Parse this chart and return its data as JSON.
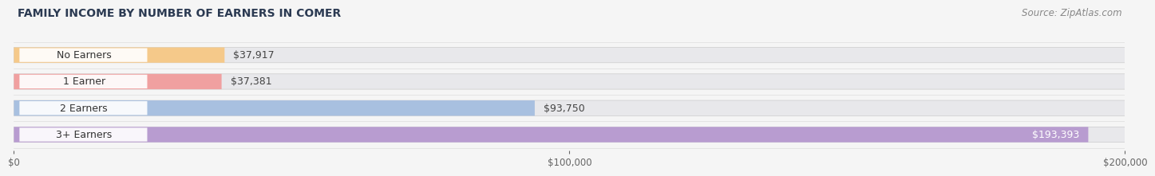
{
  "title": "FAMILY INCOME BY NUMBER OF EARNERS IN COMER",
  "source": "Source: ZipAtlas.com",
  "categories": [
    "No Earners",
    "1 Earner",
    "2 Earners",
    "3+ Earners"
  ],
  "values": [
    37917,
    37381,
    93750,
    193393
  ],
  "bar_colors": [
    "#f5c98a",
    "#f0a0a0",
    "#a8c0e0",
    "#b89cd0"
  ],
  "circle_colors": [
    "#e8a850",
    "#d07878",
    "#6090c8",
    "#7850a0"
  ],
  "label_colors": [
    "#333333",
    "#333333",
    "#333333",
    "#333333"
  ],
  "value_labels": [
    "$37,917",
    "$37,381",
    "$93,750",
    "$193,393"
  ],
  "xlim": [
    0,
    200000
  ],
  "xticks": [
    0,
    100000,
    200000
  ],
  "xtick_labels": [
    "$0",
    "$100,000",
    "$200,000"
  ],
  "bg_color": "#f5f5f5",
  "bar_bg_color": "#e8e8eb",
  "title_color": "#2b3a52",
  "source_color": "#888888",
  "title_fontsize": 10,
  "source_fontsize": 8.5,
  "tick_fontsize": 8.5,
  "bar_label_fontsize": 9,
  "bar_height": 0.58,
  "value_label_inside_color": "#ffffff",
  "value_label_outside_color": "#444444"
}
